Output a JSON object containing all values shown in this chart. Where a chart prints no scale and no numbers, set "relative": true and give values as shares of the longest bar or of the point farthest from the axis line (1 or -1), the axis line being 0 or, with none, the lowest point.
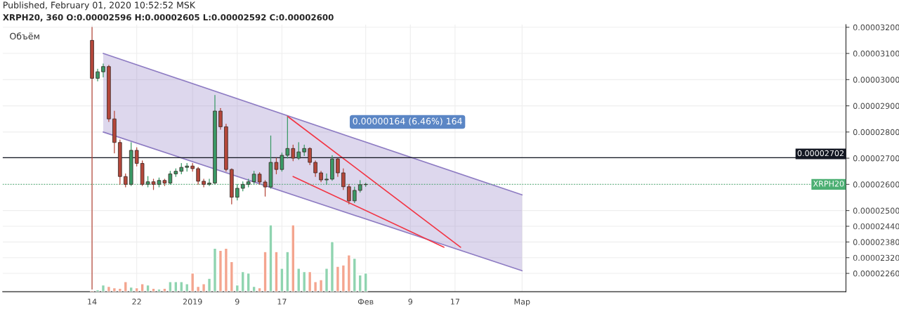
{
  "chart_data": [
    {
      "type": "candlestick",
      "title": "Published, February 01, 2020 10:52:52 MSK",
      "subtitle": "XRPH20, 360 O:0.00002596 H:0.00002605 L:0.00002592 C:0.00002600",
      "annotations": [
        "Объём",
        "0.00000164 (6.46%) 164"
      ],
      "x": [
        "2018-12-14",
        "2018-12-15",
        "2018-12-16",
        "2018-12-17",
        "2018-12-18",
        "2018-12-19",
        "2018-12-20",
        "2018-12-21",
        "2018-12-22",
        "2018-12-23",
        "2018-12-24",
        "2018-12-25",
        "2018-12-26",
        "2018-12-27",
        "2018-12-28",
        "2018-12-29",
        "2018-12-30",
        "2018-12-31",
        "2019-01-01",
        "2019-01-02",
        "2019-01-03",
        "2019-01-04",
        "2019-01-05",
        "2019-01-06",
        "2019-01-07",
        "2019-01-08",
        "2019-01-09",
        "2019-01-10",
        "2019-01-11",
        "2019-01-12",
        "2019-01-13",
        "2019-01-14",
        "2019-01-15",
        "2019-01-16",
        "2019-01-17",
        "2019-01-18",
        "2019-01-19",
        "2019-01-20",
        "2019-01-21",
        "2019-01-22",
        "2019-01-23",
        "2019-01-24",
        "2019-01-25",
        "2019-01-26",
        "2019-01-27",
        "2019-01-28",
        "2019-01-29",
        "2019-01-30",
        "2019-01-31",
        "2019-02-01"
      ],
      "ohlc": [
        [
          3.15e-05,
          3.2e-05,
          2.2e-05,
          3.005e-05
        ],
        [
          3.005e-05,
          3.04e-05,
          2.995e-05,
          3.03e-05
        ],
        [
          3.03e-05,
          3.06e-05,
          3.01e-05,
          3.05e-05
        ],
        [
          3.05e-05,
          3.055e-05,
          2.84e-05,
          2.85e-05
        ],
        [
          2.85e-05,
          2.88e-05,
          2.72e-05,
          2.76e-05
        ],
        [
          2.76e-05,
          2.77e-05,
          2.6e-05,
          2.63e-05
        ],
        [
          2.63e-05,
          2.64e-05,
          2.59e-05,
          2.6e-05
        ],
        [
          2.6e-05,
          2.76e-05,
          2.595e-05,
          2.73e-05
        ],
        [
          2.73e-05,
          2.74e-05,
          2.67e-05,
          2.68e-05
        ],
        [
          2.68e-05,
          2.69e-05,
          2.595e-05,
          2.6e-05
        ],
        [
          2.6e-05,
          2.63e-05,
          2.59e-05,
          2.61e-05
        ],
        [
          2.61e-05,
          2.62e-05,
          2.58e-05,
          2.6e-05
        ],
        [
          2.6e-05,
          2.625e-05,
          2.59e-05,
          2.615e-05
        ],
        [
          2.615e-05,
          2.62e-05,
          2.595e-05,
          2.605e-05
        ],
        [
          2.605e-05,
          2.65e-05,
          2.6e-05,
          2.64e-05
        ],
        [
          2.64e-05,
          2.66e-05,
          2.63e-05,
          2.65e-05
        ],
        [
          2.65e-05,
          2.68e-05,
          2.64e-05,
          2.665e-05
        ],
        [
          2.665e-05,
          2.68e-05,
          2.65e-05,
          2.67e-05
        ],
        [
          2.67e-05,
          2.68e-05,
          2.65e-05,
          2.66e-05
        ],
        [
          2.66e-05,
          2.665e-05,
          2.6e-05,
          2.612e-05
        ],
        [
          2.612e-05,
          2.62e-05,
          2.59e-05,
          2.6e-05
        ],
        [
          2.6e-05,
          2.62e-05,
          2.595e-05,
          2.605e-05
        ],
        [
          2.605e-05,
          2.94e-05,
          2.6e-05,
          2.88e-05
        ],
        [
          2.88e-05,
          2.89e-05,
          2.81e-05,
          2.82e-05
        ],
        [
          2.82e-05,
          2.83e-05,
          2.65e-05,
          2.657e-05
        ],
        [
          2.657e-05,
          2.66e-05,
          2.525e-05,
          2.551e-05
        ],
        [
          2.551e-05,
          2.6e-05,
          2.54e-05,
          2.585e-05
        ],
        [
          2.585e-05,
          2.61e-05,
          2.575e-05,
          2.6e-05
        ],
        [
          2.6e-05,
          2.62e-05,
          2.59e-05,
          2.61e-05
        ],
        [
          2.61e-05,
          2.65e-05,
          2.6e-05,
          2.639e-05
        ],
        [
          2.639e-05,
          2.645e-05,
          2.6e-05,
          2.609e-05
        ],
        [
          2.609e-05,
          2.615e-05,
          2.555e-05,
          2.59e-05
        ],
        [
          2.59e-05,
          2.785e-05,
          2.585e-05,
          2.684e-05
        ],
        [
          2.684e-05,
          2.7e-05,
          2.64e-05,
          2.657e-05
        ],
        [
          2.657e-05,
          2.72e-05,
          2.65e-05,
          2.711e-05
        ],
        [
          2.711e-05,
          2.857e-05,
          2.7e-05,
          2.737e-05
        ],
        [
          2.737e-05,
          2.75e-05,
          2.69e-05,
          2.7e-05
        ],
        [
          2.7e-05,
          2.76e-05,
          2.695e-05,
          2.724e-05
        ],
        [
          2.724e-05,
          2.75e-05,
          2.71e-05,
          2.737e-05
        ],
        [
          2.737e-05,
          2.74e-05,
          2.675e-05,
          2.684e-05
        ],
        [
          2.684e-05,
          2.69e-05,
          2.63e-05,
          2.644e-05
        ],
        [
          2.644e-05,
          2.65e-05,
          2.61e-05,
          2.617e-05
        ],
        [
          2.617e-05,
          2.64e-05,
          2.6e-05,
          2.62e-05
        ],
        [
          2.62e-05,
          2.71e-05,
          2.615e-05,
          2.697e-05
        ],
        [
          2.697e-05,
          2.7e-05,
          2.63e-05,
          2.644e-05
        ],
        [
          2.644e-05,
          2.66e-05,
          2.58e-05,
          2.591e-05
        ],
        [
          2.591e-05,
          2.6e-05,
          2.525e-05,
          2.537e-05
        ],
        [
          2.537e-05,
          2.59e-05,
          2.53e-05,
          2.577e-05
        ],
        [
          2.577e-05,
          2.615e-05,
          2.57e-05,
          2.599e-05
        ],
        [
          2.599e-05,
          2.605e-05,
          2.592e-05,
          2.6e-05
        ]
      ],
      "colors": [
        "#b5473a",
        "#3a9a66",
        "#3a9a66",
        "#b5473a",
        "#b5473a",
        "#b5473a",
        "#b5473a",
        "#3a9a66",
        "#b5473a",
        "#b5473a",
        "#3a9a66",
        "#b5473a",
        "#3a9a66",
        "#b5473a",
        "#3a9a66",
        "#3a9a66",
        "#3a9a66",
        "#3a9a66",
        "#b5473a",
        "#b5473a",
        "#b5473a",
        "#3a9a66",
        "#3a9a66",
        "#b5473a",
        "#b5473a",
        "#b5473a",
        "#3a9a66",
        "#3a9a66",
        "#3a9a66",
        "#3a9a66",
        "#b5473a",
        "#b5473a",
        "#3a9a66",
        "#b5473a",
        "#3a9a66",
        "#3a9a66",
        "#b5473a",
        "#3a9a66",
        "#3a9a66",
        "#b5473a",
        "#b5473a",
        "#b5473a",
        "#3a9a66",
        "#3a9a66",
        "#b5473a",
        "#b5473a",
        "#b5473a",
        "#3a9a66",
        "#3a9a66",
        "#3a9a66"
      ],
      "series": [
        {
          "type": "line",
          "color": "#8e7cc3",
          "x": [
            "2018-12-16",
            "2019-03-01"
          ],
          "values": [
            3.1e-05,
            2.56e-05
          ],
          "lower": [
            2.8e-05,
            2.27e-05
          ],
          "upper": [
            3.1e-05,
            2.56e-05
          ]
        },
        {
          "type": "line",
          "color": "#8e7cc3",
          "x": [
            "2018-12-16",
            "2019-03-01"
          ],
          "values": [
            2.8e-05,
            2.27e-05
          ]
        },
        {
          "type": "line",
          "color": "#f23645",
          "x": [
            "2019-01-18",
            "2019-02-18"
          ],
          "values": [
            2.86e-05,
            2.36e-05
          ]
        },
        {
          "type": "line",
          "color": "#f23645",
          "x": [
            "2019-01-19",
            "2019-02-15"
          ],
          "values": [
            2.63e-05,
            2.36e-05
          ]
        }
      ],
      "ref_lines": [
        {
          "axis": "y",
          "value": 2.702e-05,
          "label": "0.00002702",
          "color": "#131722",
          "line_style": "solid"
        },
        {
          "axis": "y",
          "value": 2.6e-05,
          "label": "XRPH20",
          "color": "#4caf73",
          "line_style": "dotted"
        }
      ],
      "xlim": [
        "2018-11-28",
        "2019-04-28"
      ],
      "ylim": [
        2.19e-05,
        3.21e-05
      ],
      "xticks": [
        {
          "value": "2018-12-14",
          "label": "14"
        },
        {
          "value": "2018-12-22",
          "label": "22"
        },
        {
          "value": "2019-01-01",
          "label": "2019"
        },
        {
          "value": "2019-01-09",
          "label": "9"
        },
        {
          "value": "2019-01-17",
          "label": "17"
        },
        {
          "value": "2019-02-01",
          "label": "Фев"
        },
        {
          "value": "2019-02-09",
          "label": "9"
        },
        {
          "value": "2019-02-17",
          "label": "17"
        },
        {
          "value": "2019-03-01",
          "label": "Мар"
        }
      ],
      "yticks": [
        {
          "value": 2.26e-05,
          "label": "0.00002260"
        },
        {
          "value": 2.32e-05,
          "label": "0.00002320"
        },
        {
          "value": 2.38e-05,
          "label": "0.00002380"
        },
        {
          "value": 2.44e-05,
          "label": "0.00002440"
        },
        {
          "value": 2.5e-05,
          "label": "0.00002500"
        },
        {
          "value": 2.6e-05,
          "label": "0.00002600"
        },
        {
          "value": 2.7e-05,
          "label": "0.00002700"
        },
        {
          "value": 2.8e-05,
          "label": "0.00002800"
        },
        {
          "value": 2.9e-05,
          "label": "0.00002900"
        },
        {
          "value": 3e-05,
          "label": "0.00003000"
        },
        {
          "value": 3.1e-05,
          "label": "0.00003100"
        },
        {
          "value": 3.2e-05,
          "label": "0.00003200"
        }
      ],
      "grid": true,
      "legend": false
    },
    {
      "type": "bar",
      "relative": true,
      "tick_labels": false,
      "xlim": [
        "2018-11-28",
        "2019-04-28"
      ],
      "x": [
        "2018-12-14",
        "2018-12-15",
        "2018-12-16",
        "2018-12-17",
        "2018-12-18",
        "2018-12-19",
        "2018-12-20",
        "2018-12-21",
        "2018-12-22",
        "2018-12-23",
        "2018-12-24",
        "2018-12-25",
        "2018-12-26",
        "2018-12-27",
        "2018-12-28",
        "2018-12-29",
        "2018-12-30",
        "2018-12-31",
        "2019-01-01",
        "2019-01-02",
        "2019-01-03",
        "2019-01-04",
        "2019-01-05",
        "2019-01-06",
        "2019-01-07",
        "2019-01-08",
        "2019-01-09",
        "2019-01-10",
        "2019-01-11",
        "2019-01-12",
        "2019-01-13",
        "2019-01-14",
        "2019-01-15",
        "2019-01-16",
        "2019-01-17",
        "2019-01-18",
        "2019-01-19",
        "2019-01-20",
        "2019-01-21",
        "2019-01-22",
        "2019-01-23",
        "2019-01-24",
        "2019-01-25",
        "2019-01-26",
        "2019-01-27",
        "2019-01-28",
        "2019-01-29",
        "2019-01-30",
        "2019-01-31",
        "2019-02-01"
      ],
      "values": [
        0.02,
        0.03,
        0.1,
        0.08,
        0.06,
        0.05,
        0.15,
        0.07,
        0.06,
        0.12,
        0.1,
        0.05,
        0.04,
        0.05,
        0.15,
        0.15,
        0.15,
        0.12,
        0.28,
        0.08,
        0.12,
        0.2,
        0.65,
        0.62,
        0.65,
        0.45,
        0.1,
        0.3,
        0.28,
        0.08,
        0.06,
        0.6,
        1.0,
        0.6,
        0.35,
        0.6,
        1.0,
        0.35,
        0.3,
        0.3,
        0.15,
        0.18,
        0.35,
        0.75,
        0.38,
        0.4,
        0.55,
        0.5,
        0.25,
        0.28
      ],
      "colors": [
        "#f4a58f",
        "#8fd4b0",
        "#8fd4b0",
        "#f4a58f",
        "#f4a58f",
        "#f4a58f",
        "#f4a58f",
        "#8fd4b0",
        "#f4a58f",
        "#f4a58f",
        "#8fd4b0",
        "#f4a58f",
        "#8fd4b0",
        "#f4a58f",
        "#8fd4b0",
        "#8fd4b0",
        "#8fd4b0",
        "#8fd4b0",
        "#f4a58f",
        "#f4a58f",
        "#f4a58f",
        "#8fd4b0",
        "#8fd4b0",
        "#f4a58f",
        "#f4a58f",
        "#f4a58f",
        "#8fd4b0",
        "#8fd4b0",
        "#8fd4b0",
        "#8fd4b0",
        "#f4a58f",
        "#f4a58f",
        "#8fd4b0",
        "#f4a58f",
        "#8fd4b0",
        "#8fd4b0",
        "#f4a58f",
        "#8fd4b0",
        "#8fd4b0",
        "#f4a58f",
        "#f4a58f",
        "#f4a58f",
        "#8fd4b0",
        "#8fd4b0",
        "#f4a58f",
        "#f4a58f",
        "#f4a58f",
        "#8fd4b0",
        "#8fd4b0",
        "#8fd4b0"
      ]
    }
  ]
}
